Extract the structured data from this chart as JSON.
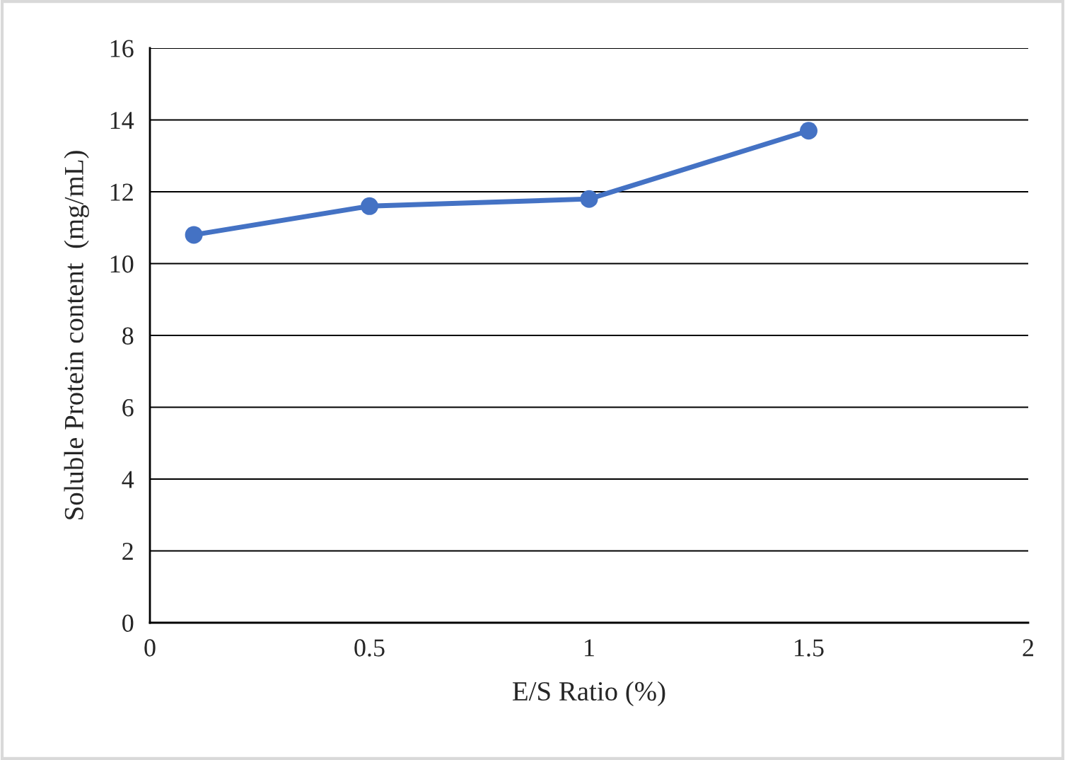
{
  "chart_data": {
    "type": "line",
    "xlabel": "E/S Ratio (%)",
    "ylabel": "Soluble Protein content  (mg/mL)",
    "x": [
      0.1,
      0.5,
      1,
      1.5
    ],
    "series": [
      {
        "color": "#4472c4",
        "values": [
          10.8,
          11.6,
          11.8,
          13.7
        ]
      }
    ],
    "xlim": [
      0,
      2
    ],
    "xticks": [
      0,
      0.5,
      1,
      1.5,
      2
    ],
    "ylim": [
      0,
      16
    ],
    "yticks": [
      0,
      2,
      4,
      6,
      8,
      10,
      12,
      14,
      16
    ],
    "grid": "y",
    "marker": "circle",
    "line_style": "solid"
  }
}
